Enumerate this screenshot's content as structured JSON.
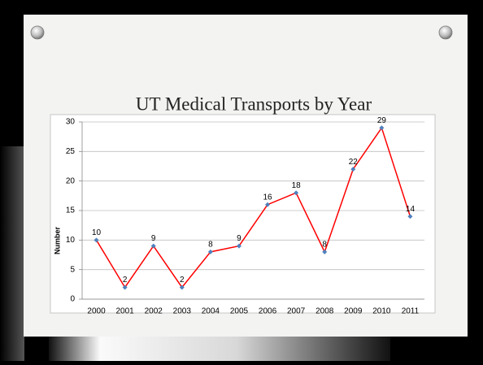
{
  "chart_data": {
    "type": "line",
    "title": "UT Medical Transports by Year",
    "y_label": "Number",
    "categories": [
      "2000",
      "2001",
      "2002",
      "2003",
      "2004",
      "2005",
      "2006",
      "2007",
      "2008",
      "2009",
      "2010",
      "2011"
    ],
    "values": [
      10,
      2,
      9,
      2,
      8,
      9,
      16,
      18,
      8,
      22,
      29,
      14
    ],
    "color": "#ff0000",
    "marker_color": "#4f81bd",
    "ylim": [
      0,
      30
    ],
    "yticks": [
      0,
      5,
      10,
      15,
      20,
      25,
      30
    ],
    "grid": true
  }
}
